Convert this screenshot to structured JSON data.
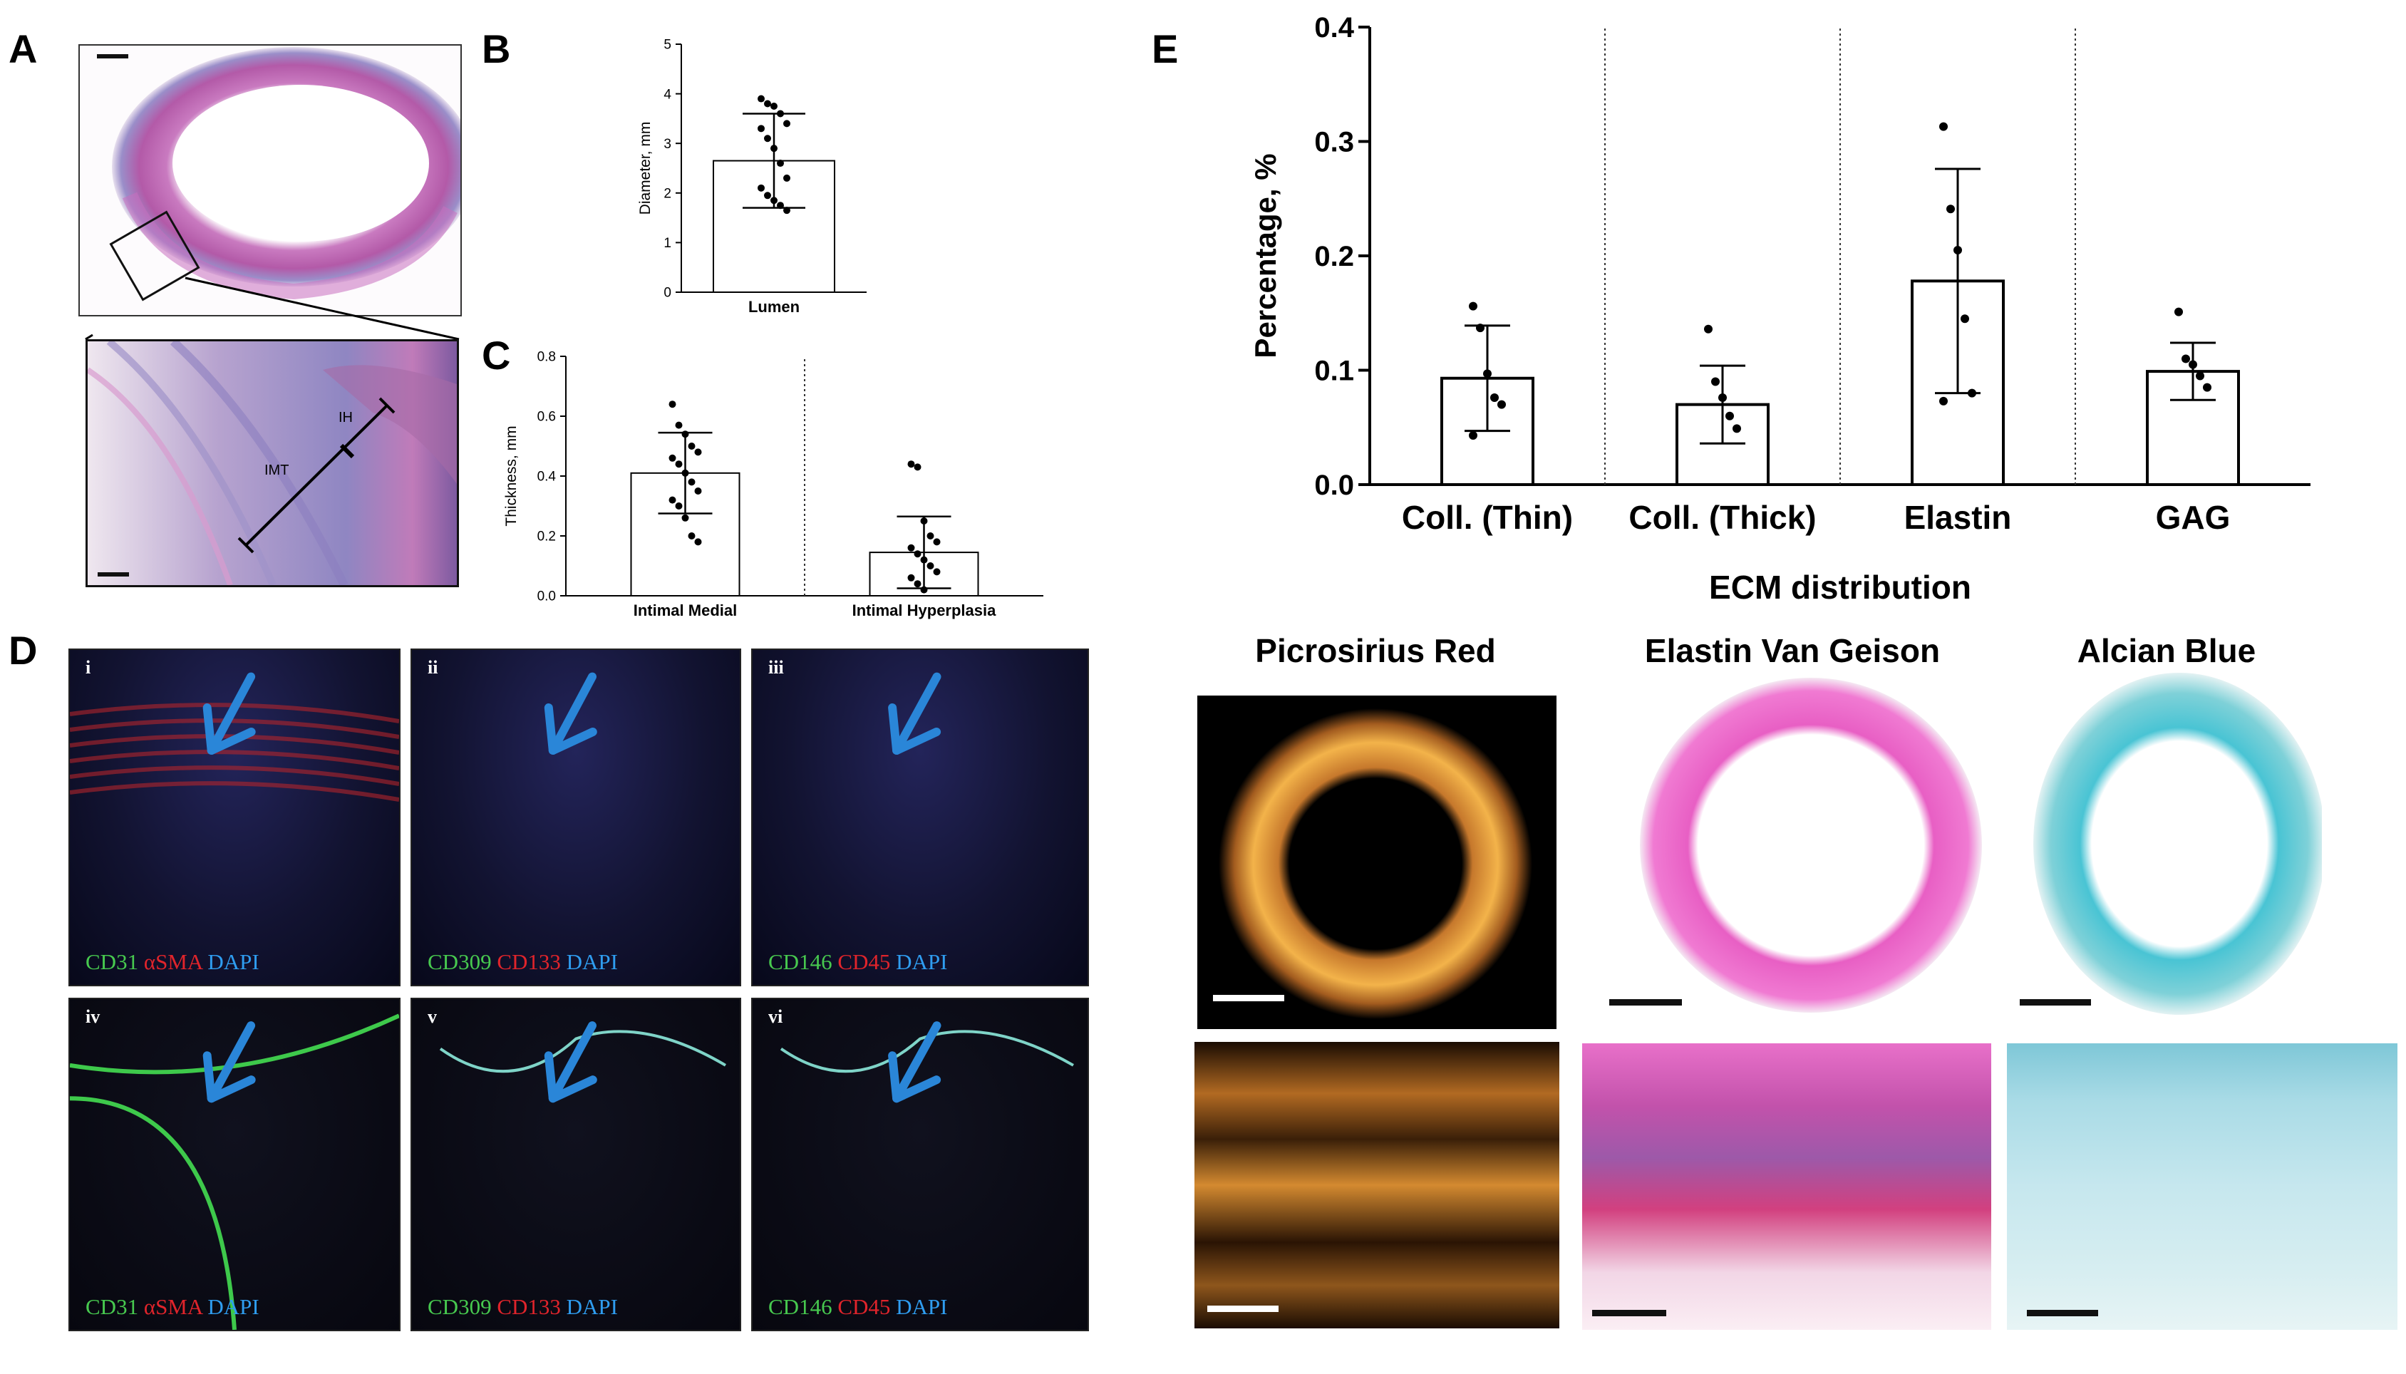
{
  "panels": {
    "A": "A",
    "B": "B",
    "C": "C",
    "D": "D",
    "E": "E"
  },
  "panel_a": {
    "annotation_ih": "IH",
    "annotation_imt": "IMT"
  },
  "panel_d": {
    "tiles": [
      {
        "roman": "i",
        "markers": [
          {
            "text": "CD31",
            "color": "#47c94f"
          },
          {
            "text": " αSMA",
            "color": "#e0242b"
          },
          {
            "text": " DAPI",
            "color": "#2f9df0"
          }
        ]
      },
      {
        "roman": "ii",
        "markers": [
          {
            "text": "CD309",
            "color": "#47c94f"
          },
          {
            "text": " CD133",
            "color": "#e0242b"
          },
          {
            "text": " DAPI",
            "color": "#2f9df0"
          }
        ]
      },
      {
        "roman": "iii",
        "markers": [
          {
            "text": "CD146",
            "color": "#47c94f"
          },
          {
            "text": " CD45",
            "color": "#e0242b"
          },
          {
            "text": " DAPI",
            "color": "#2f9df0"
          }
        ]
      },
      {
        "roman": "iv",
        "markers": [
          {
            "text": "CD31",
            "color": "#47c94f"
          },
          {
            "text": " αSMA",
            "color": "#e0242b"
          },
          {
            "text": " DAPI",
            "color": "#2f9df0"
          }
        ]
      },
      {
        "roman": "v",
        "markers": [
          {
            "text": "CD309",
            "color": "#47c94f"
          },
          {
            "text": " CD133",
            "color": "#e0242b"
          },
          {
            "text": " DAPI",
            "color": "#2f9df0"
          }
        ]
      },
      {
        "roman": "vi",
        "markers": [
          {
            "text": "CD146",
            "color": "#47c94f"
          },
          {
            "text": " CD45",
            "color": "#e0242b"
          },
          {
            "text": " DAPI",
            "color": "#2f9df0"
          }
        ]
      }
    ],
    "arrow_color": "#2a86d8"
  },
  "stains": {
    "picrosirius": "Picrosirius Red",
    "evg": "Elastin Van Geison",
    "alcian": "Alcian Blue"
  },
  "chart_data": [
    {
      "id": "B",
      "type": "bar",
      "categories": [
        "Lumen"
      ],
      "values": [
        2.65
      ],
      "error_sd": [
        0.95
      ],
      "points": [
        [
          3.9,
          3.8,
          3.75,
          3.6,
          3.4,
          3.3,
          3.1,
          2.9,
          2.6,
          2.3,
          2.1,
          1.95,
          1.85,
          1.75,
          1.65
        ]
      ],
      "ylabel": "Diameter, mm",
      "yticks": [
        "0",
        "1",
        "2",
        "3",
        "4",
        "5"
      ],
      "ylim": [
        0,
        5
      ]
    },
    {
      "id": "C",
      "type": "bar",
      "categories": [
        "Intimal Medial",
        "Intimal Hyperplasia"
      ],
      "values": [
        0.41,
        0.145
      ],
      "error_sd": [
        0.135,
        0.12
      ],
      "points": [
        [
          0.64,
          0.57,
          0.54,
          0.5,
          0.48,
          0.46,
          0.44,
          0.41,
          0.38,
          0.35,
          0.32,
          0.3,
          0.26,
          0.2,
          0.18
        ],
        [
          0.44,
          0.43,
          0.25,
          0.2,
          0.18,
          0.16,
          0.14,
          0.12,
          0.1,
          0.08,
          0.06,
          0.04,
          0.02
        ]
      ],
      "ylabel": "Thickness, mm",
      "yticks": [
        "0.0",
        "0.2",
        "0.4",
        "0.6",
        "0.8"
      ],
      "ylim": [
        0,
        0.8
      ],
      "divider": true
    },
    {
      "id": "E",
      "type": "bar",
      "categories": [
        "Coll. (Thin)",
        "Coll. (Thick)",
        "Elastin",
        "GAG"
      ],
      "values": [
        0.093,
        0.07,
        0.178,
        0.099
      ],
      "error_sd": [
        0.046,
        0.034,
        0.098,
        0.025
      ],
      "points": [
        [
          0.156,
          0.137,
          0.097,
          0.076,
          0.07,
          0.043
        ],
        [
          0.136,
          0.09,
          0.076,
          0.06,
          0.049
        ],
        [
          0.313,
          0.241,
          0.205,
          0.145,
          0.08,
          0.073
        ],
        [
          0.151,
          0.11,
          0.105,
          0.095,
          0.085
        ]
      ],
      "ylabel": "Percentage, %",
      "yticks": [
        "0.0",
        "0.1",
        "0.2",
        "0.3",
        "0.4"
      ],
      "ylim": [
        0,
        0.4
      ],
      "xlabel": "ECM distribution",
      "dividers": true
    }
  ]
}
